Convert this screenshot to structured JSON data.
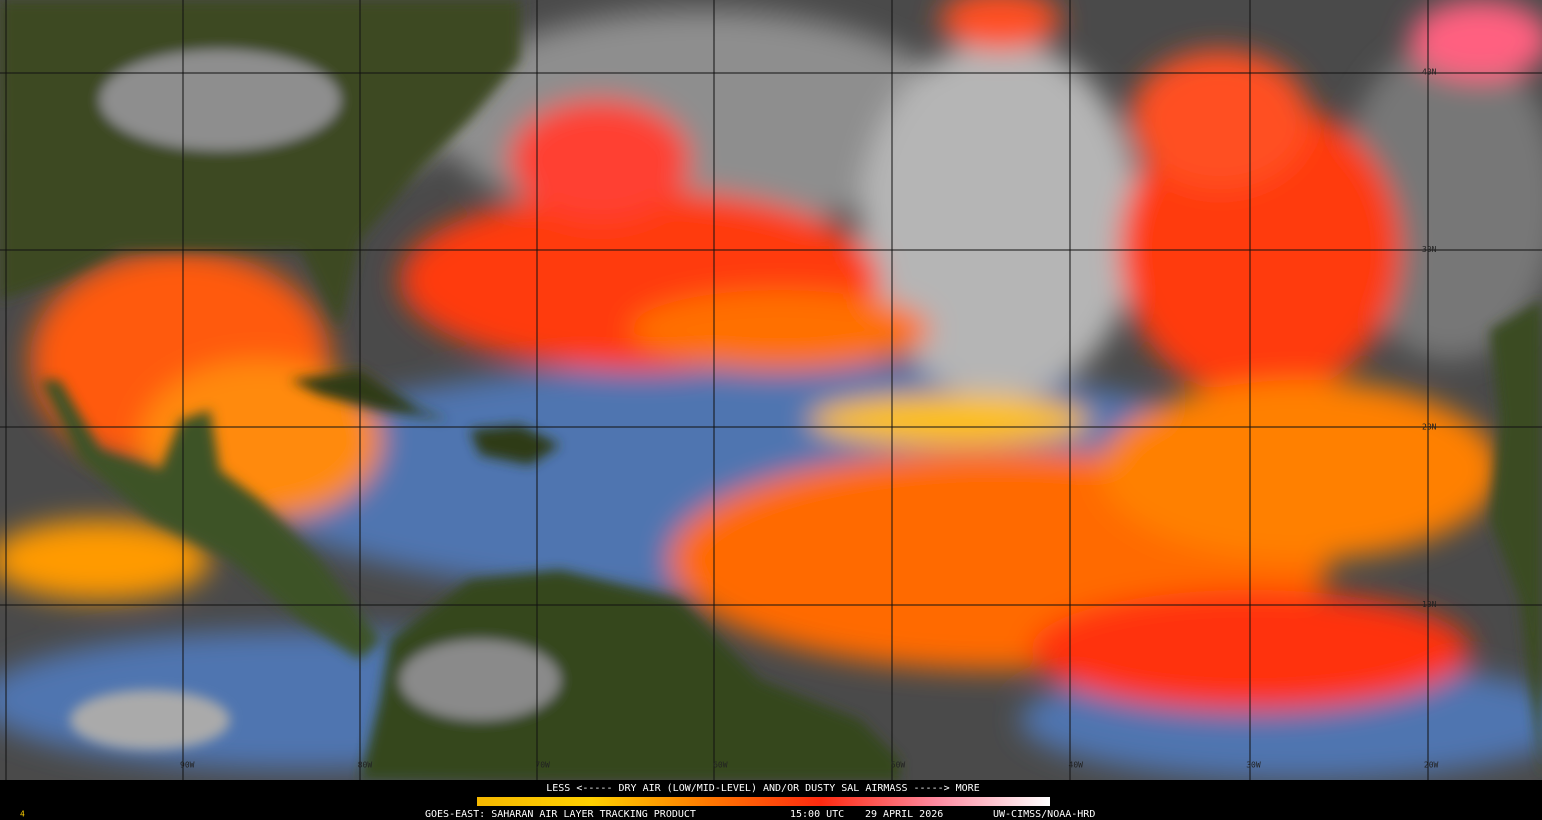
{
  "legend": {
    "caption": "LESS <----- DRY AIR (LOW/MID-LEVEL) AND/OR DUSTY SAL AIRMASS -----> MORE"
  },
  "footer": {
    "product": "GOES-EAST: SAHARAN AIR LAYER TRACKING PRODUCT",
    "time": "15:00 UTC",
    "date": "29 APRIL 2026",
    "credit": "UW-CIMSS/NOAA-HRD"
  },
  "frame_number": "4",
  "latitude_labels": [
    "40N",
    "30N",
    "20N",
    "10N"
  ],
  "longitude_labels": [
    "90W",
    "80W",
    "70W",
    "60W",
    "50W",
    "40W",
    "30W",
    "20W"
  ]
}
